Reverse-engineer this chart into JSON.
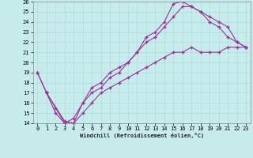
{
  "title": "",
  "xlabel": "Windchill (Refroidissement éolien,°C)",
  "bg_color": "#c8ecec",
  "line_color": "#993399",
  "grid_color": "#aadddd",
  "xlim": [
    -0.5,
    23.5
  ],
  "ylim": [
    14,
    26
  ],
  "xticks": [
    0,
    1,
    2,
    3,
    4,
    5,
    6,
    7,
    8,
    9,
    10,
    11,
    12,
    13,
    14,
    15,
    16,
    17,
    18,
    19,
    20,
    21,
    22,
    23
  ],
  "yticks": [
    14,
    15,
    16,
    17,
    18,
    19,
    20,
    21,
    22,
    23,
    24,
    25,
    26
  ],
  "line1_x": [
    0,
    1,
    2,
    3,
    4,
    5,
    6,
    7,
    8,
    9,
    10,
    11,
    12,
    13,
    14,
    15,
    16,
    17,
    18,
    19,
    20,
    21,
    22,
    23
  ],
  "line1_y": [
    19,
    17,
    15,
    14,
    14,
    16,
    17.5,
    18,
    19,
    19.5,
    20,
    21,
    22.5,
    23,
    24,
    25.8,
    26,
    25.5,
    25,
    24,
    23.5,
    22.5,
    22,
    21.5
  ],
  "line2_x": [
    0,
    1,
    2,
    3,
    4,
    5,
    6,
    7,
    8,
    9,
    10,
    11,
    12,
    13,
    14,
    15,
    16,
    17,
    18,
    19,
    20,
    21,
    22,
    23
  ],
  "line2_y": [
    19,
    17,
    15.5,
    14,
    14.5,
    16,
    17,
    17.5,
    18.5,
    19,
    20,
    21,
    22,
    22.5,
    23.5,
    24.5,
    25.5,
    25.5,
    25,
    24.5,
    24,
    23.5,
    22,
    21.5
  ],
  "line3_x": [
    1,
    3,
    4,
    5,
    6,
    7,
    8,
    9,
    10,
    11,
    12,
    13,
    14,
    15,
    16,
    17,
    18,
    19,
    20,
    21,
    22,
    23
  ],
  "line3_y": [
    17,
    14.2,
    14,
    15,
    16,
    17,
    17.5,
    18,
    18.5,
    19,
    19.5,
    20,
    20.5,
    21,
    21,
    21.5,
    21,
    21,
    21,
    21.5,
    21.5,
    21.5
  ]
}
